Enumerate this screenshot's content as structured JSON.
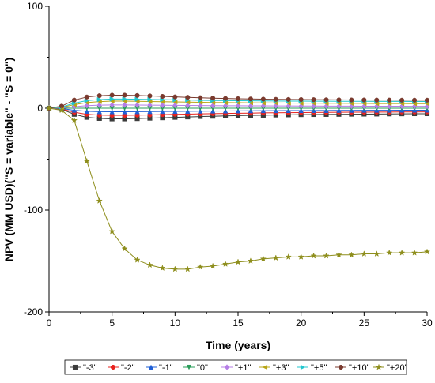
{
  "chart_data": {
    "type": "line",
    "xlabel": "Time (years)",
    "ylabel": "NPV (MM USD)(\"S = variable\" - \"S = 0\")",
    "xlim": [
      0,
      30
    ],
    "ylim": [
      -200,
      100
    ],
    "x_ticks": [
      0,
      5,
      10,
      15,
      20,
      25,
      30
    ],
    "y_ticks": [
      -200,
      -100,
      0,
      100
    ],
    "grid": false,
    "legend_position": "bottom",
    "x": [
      0,
      1,
      2,
      3,
      4,
      5,
      6,
      7,
      8,
      9,
      10,
      11,
      12,
      13,
      14,
      15,
      16,
      17,
      18,
      19,
      20,
      21,
      22,
      23,
      24,
      25,
      26,
      27,
      28,
      29,
      30
    ],
    "series": [
      {
        "name": "\"-3\"",
        "color": "#3b3b3b",
        "marker": "square",
        "values": [
          0,
          -1,
          -6,
          -9,
          -10,
          -10.5,
          -10.5,
          -10.2,
          -9.8,
          -9.4,
          -9,
          -8.6,
          -8.2,
          -7.9,
          -7.6,
          -7.3,
          -7.1,
          -6.9,
          -6.7,
          -6.5,
          -6.3,
          -6.2,
          -6.1,
          -6,
          -5.9,
          -5.8,
          -5.7,
          -5.6,
          -5.5,
          -5.4,
          -5.4
        ]
      },
      {
        "name": "\"-2\"",
        "color": "#e8221e",
        "marker": "circle",
        "values": [
          0,
          -0.7,
          -4,
          -6,
          -6.8,
          -7,
          -7,
          -6.8,
          -6.6,
          -6.3,
          -6,
          -5.8,
          -5.5,
          -5.3,
          -5.1,
          -4.9,
          -4.8,
          -4.6,
          -4.5,
          -4.4,
          -4.3,
          -4.2,
          -4.1,
          -4,
          -3.9,
          -3.9,
          -3.8,
          -3.8,
          -3.7,
          -3.7,
          -3.6
        ]
      },
      {
        "name": "\"-1\"",
        "color": "#1f5fd6",
        "marker": "triangle-up",
        "values": [
          0,
          -0.3,
          -2,
          -3,
          -3.4,
          -3.5,
          -3.5,
          -3.4,
          -3.3,
          -3.2,
          -3.1,
          -3,
          -2.9,
          -2.8,
          -2.7,
          -2.6,
          -2.5,
          -2.4,
          -2.4,
          -2.3,
          -2.3,
          -2.2,
          -2.2,
          -2.1,
          -2.1,
          -2,
          -2,
          -2,
          -1.9,
          -1.9,
          -1.9
        ]
      },
      {
        "name": "\"0\"",
        "color": "#2a9d5a",
        "marker": "triangle-down",
        "values": [
          0,
          0,
          0,
          0,
          0,
          0,
          0,
          0,
          0,
          0,
          0,
          0,
          0,
          0,
          0,
          0,
          0,
          0,
          0,
          0,
          0,
          0,
          0,
          0,
          0,
          0,
          0,
          0,
          0,
          0,
          0
        ]
      },
      {
        "name": "\"+1\"",
        "color": "#b57ee6",
        "marker": "diamond",
        "values": [
          0,
          0.3,
          1.5,
          2.5,
          3,
          3.2,
          3.2,
          3.1,
          3,
          2.9,
          2.8,
          2.7,
          2.6,
          2.5,
          2.4,
          2.4,
          2.3,
          2.3,
          2.2,
          2.2,
          2.1,
          2.1,
          2,
          2,
          2,
          1.9,
          1.9,
          1.9,
          1.9,
          1.8,
          1.8
        ]
      },
      {
        "name": "\"+3\"",
        "color": "#b8a516",
        "marker": "triangle-left",
        "values": [
          0,
          0.8,
          3.5,
          5.5,
          6.5,
          7,
          7,
          6.8,
          6.6,
          6.4,
          6.2,
          6,
          5.8,
          5.6,
          5.5,
          5.4,
          5.3,
          5.2,
          5.1,
          5,
          4.9,
          4.9,
          4.8,
          4.8,
          4.7,
          4.7,
          4.6,
          4.6,
          4.6,
          4.5,
          4.5
        ]
      },
      {
        "name": "\"+5\"",
        "color": "#22c7cf",
        "marker": "triangle-right",
        "values": [
          0,
          1.2,
          5,
          7.5,
          8.5,
          9,
          9,
          8.8,
          8.6,
          8.4,
          8.2,
          8,
          7.8,
          7.6,
          7.5,
          7.4,
          7.3,
          7.2,
          7.1,
          7,
          7,
          6.9,
          6.9,
          6.8,
          6.8,
          6.8,
          6.7,
          6.7,
          6.7,
          6.6,
          6.6
        ]
      },
      {
        "name": "\"+10\"",
        "color": "#7a3a2e",
        "marker": "circle",
        "values": [
          0,
          2,
          8,
          11,
          12.3,
          12.8,
          12.8,
          12.5,
          12.1,
          11.6,
          11.1,
          10.7,
          10.3,
          9.9,
          9.6,
          9.3,
          9.1,
          8.9,
          8.7,
          8.6,
          8.5,
          8.4,
          8.3,
          8.2,
          8.1,
          8.1,
          8,
          8,
          7.9,
          7.9,
          7.9
        ]
      },
      {
        "name": "\"+20\"",
        "color": "#8e8e1c",
        "marker": "star",
        "values": [
          0,
          -2,
          -12,
          -52,
          -91,
          -121,
          -138,
          -149,
          -154,
          -157,
          -158,
          -158,
          -156,
          -155,
          -153,
          -151,
          -150,
          -148,
          -147,
          -146,
          -146,
          -145,
          -145,
          -144,
          -144,
          -143,
          -143,
          -142,
          -142,
          -142,
          -141
        ]
      }
    ]
  }
}
